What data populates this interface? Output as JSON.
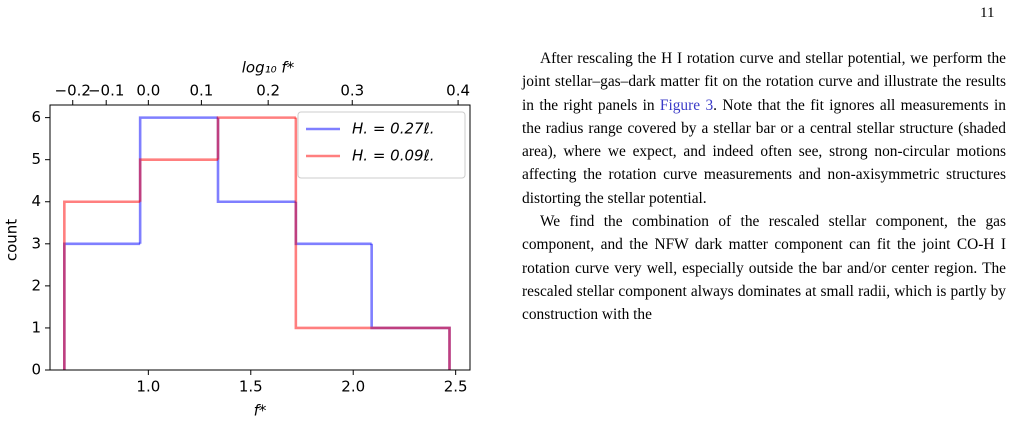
{
  "page_number": "11",
  "chart_data": {
    "type": "histogram",
    "xlabel": "f*",
    "ylabel": "count",
    "x2label": "log₁₀ f*",
    "bins": [
      0.59,
      0.96,
      1.34,
      1.72,
      2.09,
      2.47
    ],
    "series": [
      {
        "name": "H. = 0.27ℓ.",
        "color": "#0000ff",
        "values": [
          3,
          6,
          4,
          3,
          1
        ]
      },
      {
        "name": "H. = 0.09ℓ.",
        "color": "#ff0000",
        "values": [
          4,
          5,
          6,
          1,
          1
        ]
      }
    ],
    "alpha": 0.5,
    "xlim": [
      0.52,
      2.57
    ],
    "ylim": [
      0,
      6.3
    ],
    "xticks": [
      {
        "value": 1,
        "label": "1.0"
      },
      1.5,
      {
        "value": 2,
        "label": "2.0"
      },
      2.5
    ],
    "yticks": [
      0,
      1,
      2,
      3,
      4,
      5,
      6
    ],
    "x2scale": "log10",
    "x2ticks": [
      {
        "value": -0.2,
        "label": "−0.2"
      },
      {
        "value": -0.1,
        "label": "−0.1"
      },
      {
        "value": 0,
        "label": "0.0"
      },
      0.1,
      0.2,
      0.3,
      0.4
    ],
    "legend": "upper right"
  },
  "text": {
    "paragraph_1": {
      "before": "After rescaling the H I rotation curve and stellar potential, we perform the joint stellar–gas–dark matter fit on the rotation curve and illustrate the results in the right panels in ",
      "link": "Figure 3",
      "after": ". Note that the fit ignores all measurements in the radius range covered by a stellar bar or a central stellar structure (shaded area), where we expect, and indeed often see, strong non-circular motions affecting the rotation curve measurements and non-axisymmetric structures distorting the stellar potential."
    },
    "paragraph_2": "We find the combination of the rescaled stellar component, the gas component, and the NFW dark matter component can fit the joint CO-H I rotation curve very well, especially outside the bar and/or center region. The rescaled stellar component always dominates at small radii, which is partly by construction with the"
  }
}
